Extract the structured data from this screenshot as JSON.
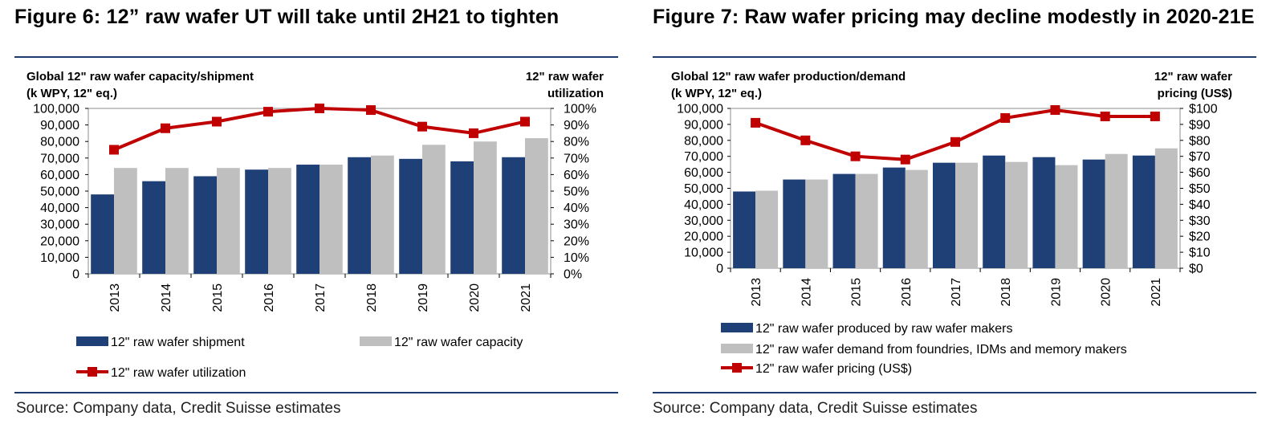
{
  "left": {
    "figure_title": "Figure 6: 12” raw wafer UT will take until 2H21 to tighten",
    "source": "Source: Company data, Credit Suisse estimates"
  },
  "right": {
    "figure_title": "Figure 7: Raw wafer pricing may decline modestly in 2020-21E",
    "source": "Source: Company data, Credit Suisse estimates"
  },
  "colors": {
    "navy": "#1f3f77",
    "grey": "#bfbfbf",
    "red": "#c00000",
    "rule": "#1f3a6e"
  },
  "chart_data": [
    {
      "type": "bar",
      "title": "",
      "ylabel": "Global 12\" raw wafer capacity/shipment (k WPY, 12\" eq.)",
      "ylabel_lines": [
        "Global 12\" raw wafer capacity/shipment",
        "(k WPY, 12\" eq.)"
      ],
      "y2label": "12\" raw wafer utilization",
      "y2label_lines": [
        "12\" raw wafer",
        "utilization"
      ],
      "categories": [
        "2013",
        "2014",
        "2015",
        "2016",
        "2017",
        "2018",
        "2019",
        "2020",
        "2021"
      ],
      "ylim": [
        0,
        100000
      ],
      "y2lim": [
        0,
        100
      ],
      "yticks": [
        "0",
        "10,000",
        "20,000",
        "30,000",
        "40,000",
        "50,000",
        "60,000",
        "70,000",
        "80,000",
        "90,000",
        "100,000"
      ],
      "y2ticks": [
        "0%",
        "10%",
        "20%",
        "30%",
        "40%",
        "50%",
        "60%",
        "70%",
        "80%",
        "90%",
        "100%"
      ],
      "series": [
        {
          "name": "12\" raw wafer shipment",
          "kind": "bar",
          "color": "#1f3f77",
          "values": [
            48000,
            56000,
            59000,
            63000,
            66000,
            70500,
            69500,
            68000,
            70500
          ]
        },
        {
          "name": "12\" raw wafer capacity",
          "kind": "bar",
          "color": "#bfbfbf",
          "values": [
            64000,
            64000,
            64000,
            64000,
            66000,
            71500,
            78000,
            80000,
            82000
          ]
        },
        {
          "name": "12\" raw wafer utilization",
          "kind": "line",
          "axis": "right",
          "color": "#c00000",
          "values": [
            75,
            88,
            92,
            98,
            100,
            99,
            89,
            85,
            92
          ]
        }
      ],
      "legend_position": "bottom"
    },
    {
      "type": "bar",
      "title": "",
      "ylabel": "Global 12\" raw wafer production/demand (k WPY, 12\" eq.)",
      "ylabel_lines": [
        "Global 12\" raw wafer production/demand",
        "(k WPY, 12\" eq.)"
      ],
      "y2label": "12\" raw wafer pricing (US$)",
      "y2label_lines": [
        "12\" raw wafer",
        "pricing (US$)"
      ],
      "categories": [
        "2013",
        "2014",
        "2015",
        "2016",
        "2017",
        "2018",
        "2019",
        "2020",
        "2021"
      ],
      "ylim": [
        0,
        100000
      ],
      "y2lim": [
        0,
        100
      ],
      "yticks": [
        "0",
        "10,000",
        "20,000",
        "30,000",
        "40,000",
        "50,000",
        "60,000",
        "70,000",
        "80,000",
        "90,000",
        "100,000"
      ],
      "y2ticks": [
        "$0",
        "$10",
        "$20",
        "$30",
        "$40",
        "$50",
        "$60",
        "$70",
        "$80",
        "$90",
        "$100"
      ],
      "series": [
        {
          "name": "12\" raw wafer produced by raw wafer makers",
          "kind": "bar",
          "color": "#1f3f77",
          "values": [
            48000,
            55500,
            59000,
            63000,
            66000,
            70500,
            69500,
            68000,
            70500
          ]
        },
        {
          "name": "12\" raw wafer demand from foundries, IDMs and memory makers",
          "kind": "bar",
          "color": "#bfbfbf",
          "values": [
            48500,
            55500,
            59000,
            61500,
            66000,
            66500,
            64500,
            71500,
            75000
          ]
        },
        {
          "name": "12\" raw wafer pricing (US$)",
          "kind": "line",
          "axis": "right",
          "color": "#c00000",
          "values": [
            91,
            80,
            70,
            68,
            79,
            94,
            99,
            95,
            95
          ]
        }
      ],
      "legend_position": "bottom"
    }
  ]
}
